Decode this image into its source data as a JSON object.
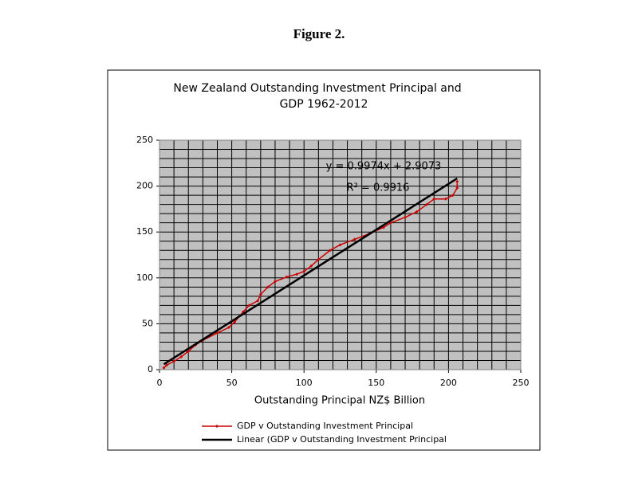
{
  "heading": "Figure 2.",
  "chart_data": {
    "type": "line",
    "title": [
      "New Zealand Outstanding Investment Principal  and",
      "GDP 1962-2012"
    ],
    "x_label": "Outstanding Principal NZ$ Billion",
    "xlim": [
      0,
      250
    ],
    "xticks": [
      0,
      50,
      100,
      150,
      200,
      250
    ],
    "ylim": [
      0,
      250
    ],
    "yticks": [
      0,
      50,
      100,
      150,
      200,
      250
    ],
    "grid": true,
    "grid_step": 10,
    "grid_color": "#000000",
    "plot_background": "#c0c0c0",
    "legend": "bottom",
    "series": [
      {
        "name": "GDP v  Outstanding Investment Principal",
        "color": "#cc0000",
        "x": [
          3,
          5,
          10,
          15,
          20,
          25,
          30,
          40,
          48,
          52,
          58,
          62,
          68,
          70,
          75,
          80,
          88,
          95,
          100,
          105,
          110,
          118,
          125,
          135,
          145,
          155,
          160,
          170,
          178,
          185,
          190,
          198,
          203,
          206,
          206
        ],
        "values": [
          2,
          5,
          9,
          14,
          20,
          27,
          32,
          40,
          46,
          52,
          63,
          70,
          75,
          82,
          90,
          96,
          101,
          104,
          107,
          113,
          120,
          130,
          136,
          142,
          148,
          155,
          160,
          166,
          172,
          180,
          186,
          186,
          190,
          198,
          205
        ]
      }
    ],
    "trendline": {
      "name": "Linear (GDP v  Outstanding Investment Principal",
      "color": "#000000",
      "slope": 0.9974,
      "intercept": 2.9073,
      "equation": "y = 0.9974x + 2.9073",
      "r_squared_label": "R² = 0.9916"
    }
  }
}
